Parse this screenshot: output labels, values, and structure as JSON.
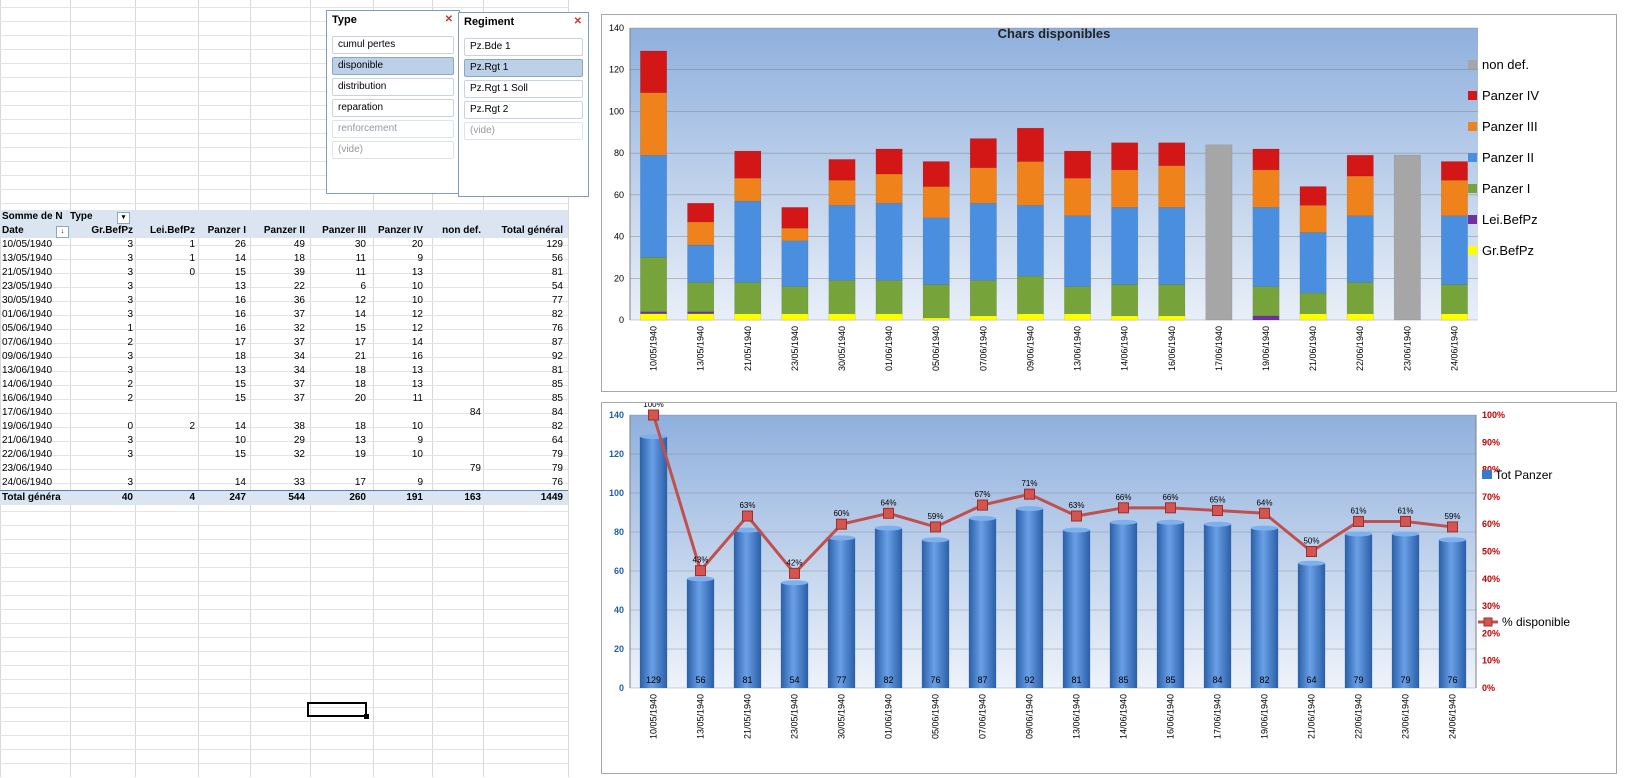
{
  "slicer_type": {
    "title": "Type",
    "items": [
      {
        "label": "cumul pertes",
        "state": "normal"
      },
      {
        "label": "disponible",
        "state": "selected"
      },
      {
        "label": "distribution",
        "state": "normal"
      },
      {
        "label": "reparation",
        "state": "normal"
      },
      {
        "label": "renforcement",
        "state": "disabled"
      },
      {
        "label": "(vide)",
        "state": "disabled"
      }
    ]
  },
  "slicer_regiment": {
    "title": "Regiment",
    "items": [
      {
        "label": "Pz.Bde 1",
        "state": "normal"
      },
      {
        "label": "Pz.Rgt 1",
        "state": "selected"
      },
      {
        "label": "Pz.Rgt 1 Soll",
        "state": "normal"
      },
      {
        "label": "Pz.Rgt 2",
        "state": "normal"
      },
      {
        "label": "(vide)",
        "state": "disabled"
      }
    ]
  },
  "pivot": {
    "corner": "Somme de N",
    "type_label": "Type",
    "columns": [
      "Date",
      "Gr.BefPz",
      "Lei.BefPz",
      "Panzer I",
      "Panzer II",
      "Panzer III",
      "Panzer IV",
      "non def.",
      "Total général"
    ],
    "rows": [
      [
        "10/05/1940",
        "3",
        "1",
        "26",
        "49",
        "30",
        "20",
        "",
        "129"
      ],
      [
        "13/05/1940",
        "3",
        "1",
        "14",
        "18",
        "11",
        "9",
        "",
        "56"
      ],
      [
        "21/05/1940",
        "3",
        "0",
        "15",
        "39",
        "11",
        "13",
        "",
        "81"
      ],
      [
        "23/05/1940",
        "3",
        "",
        "13",
        "22",
        "6",
        "10",
        "",
        "54"
      ],
      [
        "30/05/1940",
        "3",
        "",
        "16",
        "36",
        "12",
        "10",
        "",
        "77"
      ],
      [
        "01/06/1940",
        "3",
        "",
        "16",
        "37",
        "14",
        "12",
        "",
        "82"
      ],
      [
        "05/06/1940",
        "1",
        "",
        "16",
        "32",
        "15",
        "12",
        "",
        "76"
      ],
      [
        "07/06/1940",
        "2",
        "",
        "17",
        "37",
        "17",
        "14",
        "",
        "87"
      ],
      [
        "09/06/1940",
        "3",
        "",
        "18",
        "34",
        "21",
        "16",
        "",
        "92"
      ],
      [
        "13/06/1940",
        "3",
        "",
        "13",
        "34",
        "18",
        "13",
        "",
        "81"
      ],
      [
        "14/06/1940",
        "2",
        "",
        "15",
        "37",
        "18",
        "13",
        "",
        "85"
      ],
      [
        "16/06/1940",
        "2",
        "",
        "15",
        "37",
        "20",
        "11",
        "",
        "85"
      ],
      [
        "17/06/1940",
        "",
        "",
        "",
        "",
        "",
        "",
        "84",
        "84"
      ],
      [
        "19/06/1940",
        "0",
        "2",
        "14",
        "38",
        "18",
        "10",
        "",
        "82"
      ],
      [
        "21/06/1940",
        "3",
        "",
        "10",
        "29",
        "13",
        "9",
        "",
        "64"
      ],
      [
        "22/06/1940",
        "3",
        "",
        "15",
        "32",
        "19",
        "10",
        "",
        "79"
      ],
      [
        "23/06/1940",
        "",
        "",
        "",
        "",
        "",
        "",
        "79",
        "79"
      ],
      [
        "24/06/1940",
        "3",
        "",
        "14",
        "33",
        "17",
        "9",
        "",
        "76"
      ]
    ],
    "total": [
      "Total généra",
      "40",
      "4",
      "247",
      "544",
      "260",
      "191",
      "163",
      "1449"
    ]
  },
  "chart_data": [
    {
      "type": "bar",
      "stacked": true,
      "title": "Chars disponibles",
      "categories": [
        "10/05/1940",
        "13/05/1940",
        "21/05/1940",
        "23/05/1940",
        "30/05/1940",
        "01/06/1940",
        "05/06/1940",
        "07/06/1940",
        "09/06/1940",
        "13/06/1940",
        "14/06/1940",
        "16/06/1940",
        "17/06/1940",
        "19/06/1940",
        "21/06/1940",
        "22/06/1940",
        "23/06/1940",
        "24/06/1940"
      ],
      "ylim": [
        0,
        140
      ],
      "yticks": [
        0,
        20,
        40,
        60,
        80,
        100,
        120,
        140
      ],
      "grid": true,
      "legend_position": "right",
      "series": [
        {
          "name": "Gr.BefPz",
          "color": "#ffff00",
          "values": [
            3,
            3,
            3,
            3,
            3,
            3,
            1,
            2,
            3,
            3,
            2,
            2,
            0,
            0,
            3,
            3,
            0,
            3
          ]
        },
        {
          "name": "Lei.BefPz",
          "color": "#7030a0",
          "values": [
            1,
            1,
            0,
            0,
            0,
            0,
            0,
            0,
            0,
            0,
            0,
            0,
            0,
            2,
            0,
            0,
            0,
            0
          ]
        },
        {
          "name": "Panzer I",
          "color": "#77a33b",
          "values": [
            26,
            14,
            15,
            13,
            16,
            16,
            16,
            17,
            18,
            13,
            15,
            15,
            0,
            14,
            10,
            15,
            0,
            14
          ]
        },
        {
          "name": "Panzer II",
          "color": "#4a8fdf",
          "values": [
            49,
            18,
            39,
            22,
            36,
            37,
            32,
            37,
            34,
            34,
            37,
            37,
            0,
            38,
            29,
            32,
            0,
            33
          ]
        },
        {
          "name": "Panzer III",
          "color": "#f0821c",
          "values": [
            30,
            11,
            11,
            6,
            12,
            14,
            15,
            17,
            21,
            18,
            18,
            20,
            0,
            18,
            13,
            19,
            0,
            17
          ]
        },
        {
          "name": "Panzer IV",
          "color": "#d31616",
          "values": [
            20,
            9,
            13,
            10,
            10,
            12,
            12,
            14,
            16,
            13,
            13,
            11,
            0,
            10,
            9,
            10,
            0,
            9
          ]
        },
        {
          "name": "non def.",
          "color": "#a6a6a6",
          "values": [
            0,
            0,
            0,
            0,
            0,
            0,
            0,
            0,
            0,
            0,
            0,
            0,
            84,
            0,
            0,
            0,
            79,
            0
          ]
        }
      ],
      "legend_order": [
        "non def.",
        "Panzer IV",
        "Panzer III",
        "Panzer II",
        "Panzer I",
        "Lei.BefPz",
        "Gr.BefPz"
      ]
    },
    {
      "type": "bar",
      "combo": "bar+line",
      "categories": [
        "10/05/1940",
        "13/05/1940",
        "21/05/1940",
        "23/05/1940",
        "30/05/1940",
        "01/06/1940",
        "05/06/1940",
        "07/06/1940",
        "09/06/1940",
        "13/06/1940",
        "14/06/1940",
        "16/06/1940",
        "17/06/1940",
        "19/06/1940",
        "21/06/1940",
        "22/06/1940",
        "23/06/1940",
        "24/06/1940"
      ],
      "ylim": [
        0,
        140
      ],
      "yticks": [
        0,
        20,
        40,
        60,
        80,
        100,
        120,
        140
      ],
      "y2lim": [
        0,
        100
      ],
      "y2ticks": [
        "0%",
        "10%",
        "20%",
        "30%",
        "40%",
        "50%",
        "60%",
        "70%",
        "80%",
        "90%",
        "100%"
      ],
      "grid": true,
      "legend_position": "right",
      "series": [
        {
          "name": "Tot Panzer",
          "kind": "bar",
          "color": "#3a78c9",
          "values": [
            129,
            56,
            81,
            54,
            77,
            82,
            76,
            87,
            92,
            81,
            85,
            85,
            84,
            82,
            64,
            79,
            79,
            76
          ]
        },
        {
          "name": "% disponible",
          "kind": "line",
          "axis": "secondary",
          "color": "#c0504d",
          "values": [
            100,
            43,
            63,
            42,
            60,
            64,
            59,
            67,
            71,
            63,
            66,
            66,
            65,
            64,
            50,
            61,
            61,
            59
          ],
          "labels": [
            "100%",
            "43%",
            "63%",
            "42%",
            "60%",
            "64%",
            "59%",
            "67%",
            "71%",
            "63%",
            "66%",
            "66%",
            "65%",
            "64%",
            "50%",
            "61%",
            "61%",
            "59%"
          ]
        }
      ]
    }
  ]
}
